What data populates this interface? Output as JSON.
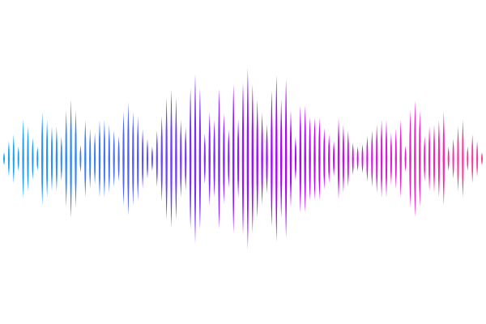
{
  "waveform": {
    "amplitudes": [
      8,
      22,
      30,
      15,
      49,
      40,
      26,
      15,
      58,
      48,
      40,
      40,
      28,
      60,
      73,
      60,
      17,
      48,
      37,
      32,
      48,
      48,
      42,
      35,
      28,
      58,
      70,
      58,
      52,
      37,
      25,
      15,
      35,
      53,
      75,
      85,
      75,
      48,
      39,
      87,
      105,
      87,
      31,
      58,
      48,
      87,
      56,
      36,
      92,
      49,
      94,
      112,
      92,
      73,
      57,
      43,
      84,
      103,
      73,
      98,
      60,
      27,
      66,
      66,
      52,
      51,
      51,
      38,
      30,
      22,
      50,
      42,
      35,
      20,
      15,
      18,
      28,
      35,
      42,
      48,
      48,
      32,
      37,
      48,
      16,
      60,
      72,
      60,
      28,
      40,
      42,
      48,
      58,
      15,
      25,
      40,
      48,
      15,
      30,
      22,
      8
    ],
    "gradient_colors": [
      "#14a9ee",
      "#3c7cf0",
      "#7a2cf6",
      "#b000f6",
      "#dc18d8",
      "#ff3c8c"
    ]
  }
}
